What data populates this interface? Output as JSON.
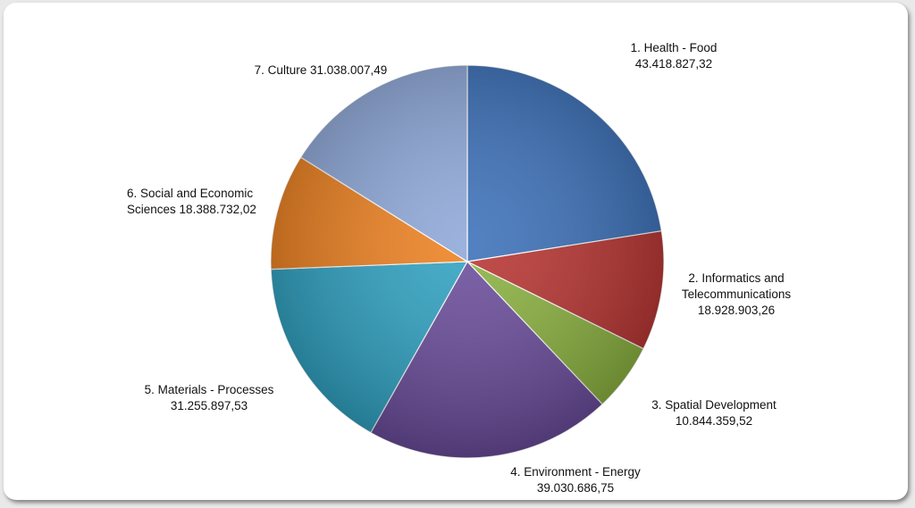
{
  "chart_data": {
    "type": "pie",
    "categories": [
      "1. Health - Food",
      "2. Informatics and Telecommunications",
      "3. Spatial Development",
      "4. Environment - Energy",
      "5. Materials - Processes",
      "6. Social and Economic Sciences",
      "7. Culture"
    ],
    "values": [
      43418827.32,
      18928903.26,
      10844359.52,
      39030686.75,
      31255897.53,
      18388732.02,
      31038007.49
    ],
    "value_labels": [
      "43.418.827,32",
      "18.928.903,26",
      "10.844.359,52",
      "39.030.686,75",
      "31.255.897,53",
      "18.388.732,02",
      "31.038.007,49"
    ],
    "colors": [
      "#3b70b9",
      "#b83431",
      "#8bb23f",
      "#6a4c9b",
      "#2fa2c2",
      "#ee8120",
      "#8ea8d9"
    ]
  }
}
